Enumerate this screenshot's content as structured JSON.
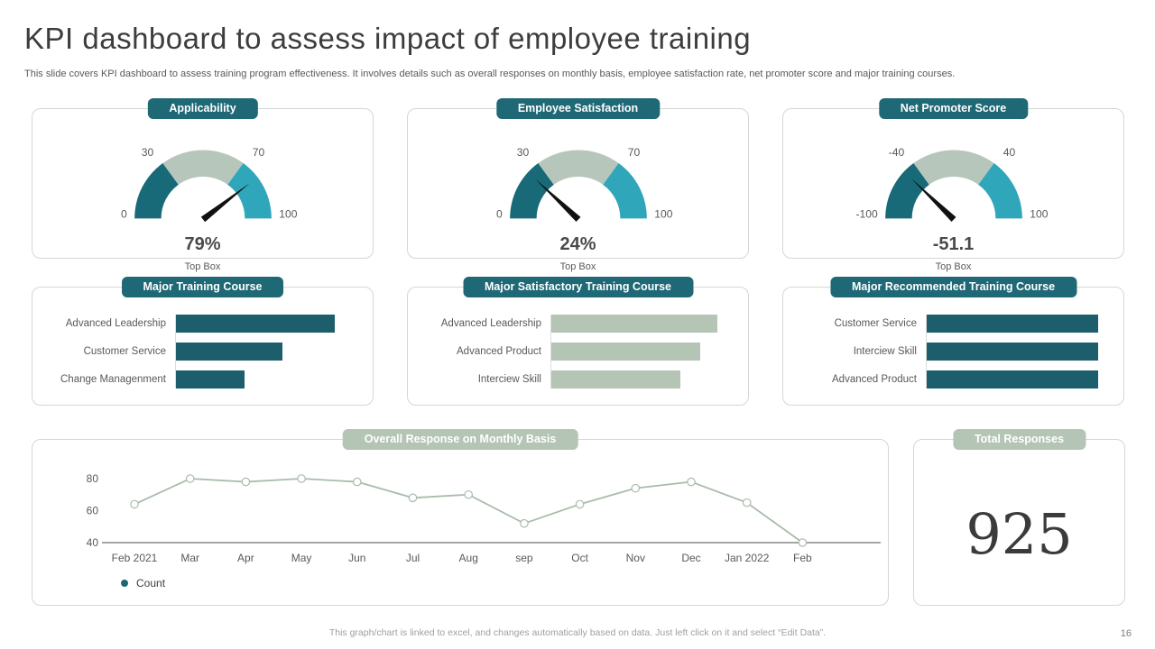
{
  "page": {
    "title": "KPI dashboard to assess impact of employee training",
    "subtitle": "This slide covers KPI dashboard to assess training program effectiveness. It involves details such as overall responses on monthly basis, employee satisfaction rate, net promoter score and major training courses.",
    "footer": "This graph/chart is linked to excel, and changes automatically based on data. Just left click on it and select “Edit Data”.",
    "page_number": "16"
  },
  "colors": {
    "accent_teal": "#1f6876",
    "gauge_dark_teal": "#186a78",
    "gauge_cyan": "#2fa6ba",
    "sage": "#b4c4b5",
    "bar_teal": "#1c5e6b",
    "line_sage": "#a9bcab",
    "text_dark": "#3d3d3d",
    "text_gray": "#595959"
  },
  "chart_data": [
    {
      "type": "gauge",
      "title": "Applicability",
      "min": 0,
      "max": 100,
      "bands": [
        [
          0,
          30
        ],
        [
          30,
          70
        ],
        [
          70,
          100
        ]
      ],
      "ticks": [
        "0",
        "30",
        "70",
        "100"
      ],
      "value": 79,
      "value_label": "79%",
      "caption": "Top Box"
    },
    {
      "type": "gauge",
      "title": "Employee Satisfaction",
      "min": 0,
      "max": 100,
      "bands": [
        [
          0,
          30
        ],
        [
          30,
          70
        ],
        [
          70,
          100
        ]
      ],
      "ticks": [
        "0",
        "30",
        "70",
        "100"
      ],
      "value": 24,
      "value_label": "24%",
      "caption": "Top Box"
    },
    {
      "type": "gauge",
      "title": "Net Promoter Score",
      "min": -100,
      "max": 100,
      "bands": [
        [
          -100,
          -40
        ],
        [
          -40,
          40
        ],
        [
          40,
          100
        ]
      ],
      "ticks": [
        "-100",
        "-40",
        "40",
        "100"
      ],
      "value": -51.1,
      "value_label": "-51.1",
      "caption": "Top Box"
    },
    {
      "type": "bar",
      "orientation": "horizontal",
      "title": "Major Training Course",
      "categories": [
        "Advanced Leadership",
        "Customer Service",
        "Change Managenment"
      ],
      "values": [
        90,
        60,
        39
      ],
      "color": "#1c5e6b",
      "axis_labels_shown": false
    },
    {
      "type": "bar",
      "orientation": "horizontal",
      "title": "Major Satisfactory Training Course",
      "categories": [
        "Advanced Leadership",
        "Advanced Product",
        "Interciew Skill"
      ],
      "values": [
        94,
        84,
        73
      ],
      "color": "#b4c4b5",
      "axis_labels_shown": false
    },
    {
      "type": "bar",
      "orientation": "horizontal",
      "title": "Major Recommended Training Course",
      "categories": [
        "Customer Service",
        "Interciew Skill",
        "Advanced Product"
      ],
      "values": [
        97,
        97,
        97
      ],
      "color": "#1c5e6b",
      "axis_labels_shown": false
    },
    {
      "type": "line",
      "title": "Overall Response on Monthly Basis",
      "categories": [
        "Feb 2021",
        "Mar",
        "Apr",
        "May",
        "Jun",
        "Jul",
        "Aug",
        "sep",
        "Oct",
        "Nov",
        "Dec",
        "Jan 2022",
        "Feb"
      ],
      "series": [
        {
          "name": "Count",
          "values": [
            64,
            80,
            78,
            80,
            78,
            68,
            70,
            52,
            64,
            74,
            78,
            65,
            40
          ]
        }
      ],
      "xlabel": "",
      "ylabel": "",
      "ylim": [
        40,
        90
      ],
      "yticks": [
        40,
        60,
        80
      ],
      "grid": false,
      "legend_position": "bottom-left",
      "line_color": "#a9bcab",
      "marker": "open-circle"
    }
  ],
  "total_responses": {
    "title": "Total Responses",
    "value": "925"
  }
}
